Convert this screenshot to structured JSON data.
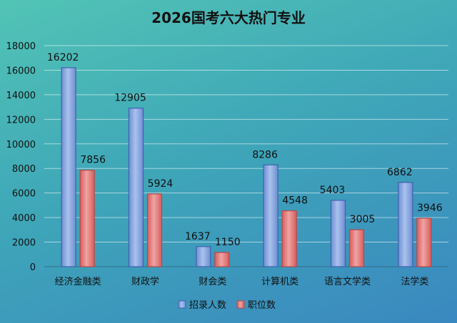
{
  "chart_data": {
    "type": "bar",
    "title": "2026国考六大热门专业",
    "categories": [
      "经济金融类",
      "财政学",
      "财会类",
      "计算机类",
      "语言文学类",
      "法学类"
    ],
    "series": [
      {
        "name": "招录人数",
        "values": [
          16202,
          12905,
          1637,
          8286,
          5403,
          6862
        ],
        "color": "#7f9fd8"
      },
      {
        "name": "职位数",
        "values": [
          7856,
          5924,
          1150,
          4548,
          3005,
          3946
        ],
        "color": "#e07575"
      }
    ],
    "ylim": [
      0,
      18000
    ],
    "yticks": [
      0,
      2000,
      4000,
      6000,
      8000,
      10000,
      12000,
      14000,
      16000,
      18000
    ],
    "grid": true,
    "legend": "bottom"
  }
}
